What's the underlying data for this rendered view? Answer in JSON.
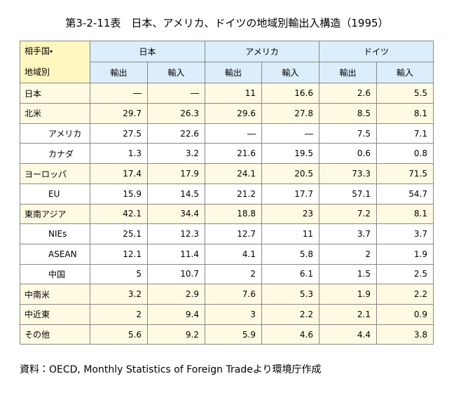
{
  "title": "第3-2-11表　日本、アメリカ、ドイツの地域別輸出入構造（1995）",
  "table": {
    "corner": [
      "相手国・",
      "地域別"
    ],
    "groups": [
      "日本",
      "アメリカ",
      "ドイツ"
    ],
    "subheaders": [
      "輸出",
      "輸入",
      "輸出",
      "輸入",
      "輸出",
      "輸入"
    ],
    "rows": [
      [
        "日本",
        "―",
        "―",
        "11",
        "16.6",
        "2.6",
        "5.5"
      ],
      [
        "北米",
        "29.7",
        "26.3",
        "29.6",
        "27.8",
        "8.5",
        "8.1"
      ],
      [
        "アメリカ",
        "27.5",
        "22.6",
        "―",
        "―",
        "7.5",
        "7.1"
      ],
      [
        "カナダ",
        "1.3",
        "3.2",
        "21.6",
        "19.5",
        "0.6",
        "0.8"
      ],
      [
        "ヨーロッパ",
        "17.4",
        "17.9",
        "24.1",
        "20.5",
        "73.3",
        "71.5"
      ],
      [
        "EU",
        "15.9",
        "14.5",
        "21.2",
        "17.7",
        "57.1",
        "54.7"
      ],
      [
        "東南アジア",
        "42.1",
        "34.4",
        "18.8",
        "23",
        "7.2",
        "8.1"
      ],
      [
        "NIEs",
        "25.1",
        "12.3",
        "12.7",
        "11",
        "3.7",
        "3.7"
      ],
      [
        "ASEAN",
        "12.1",
        "11.4",
        "4.1",
        "5.8",
        "2",
        "1.9"
      ],
      [
        "中国",
        "5",
        "10.7",
        "2",
        "6.1",
        "1.5",
        "2.5"
      ],
      [
        "中南米",
        "3.2",
        "2.9",
        "7.6",
        "5.3",
        "1.9",
        "2.2"
      ],
      [
        "中近東",
        "2",
        "9.4",
        "3",
        "2.2",
        "2.1",
        "0.9"
      ],
      [
        "その他",
        "5.6",
        "9.2",
        "5.9",
        "4.6",
        "4.4",
        "3.8"
      ]
    ]
  },
  "note": "資料：OECD, Monthly Statistics of Foreign Tradeより環境庁作成"
}
